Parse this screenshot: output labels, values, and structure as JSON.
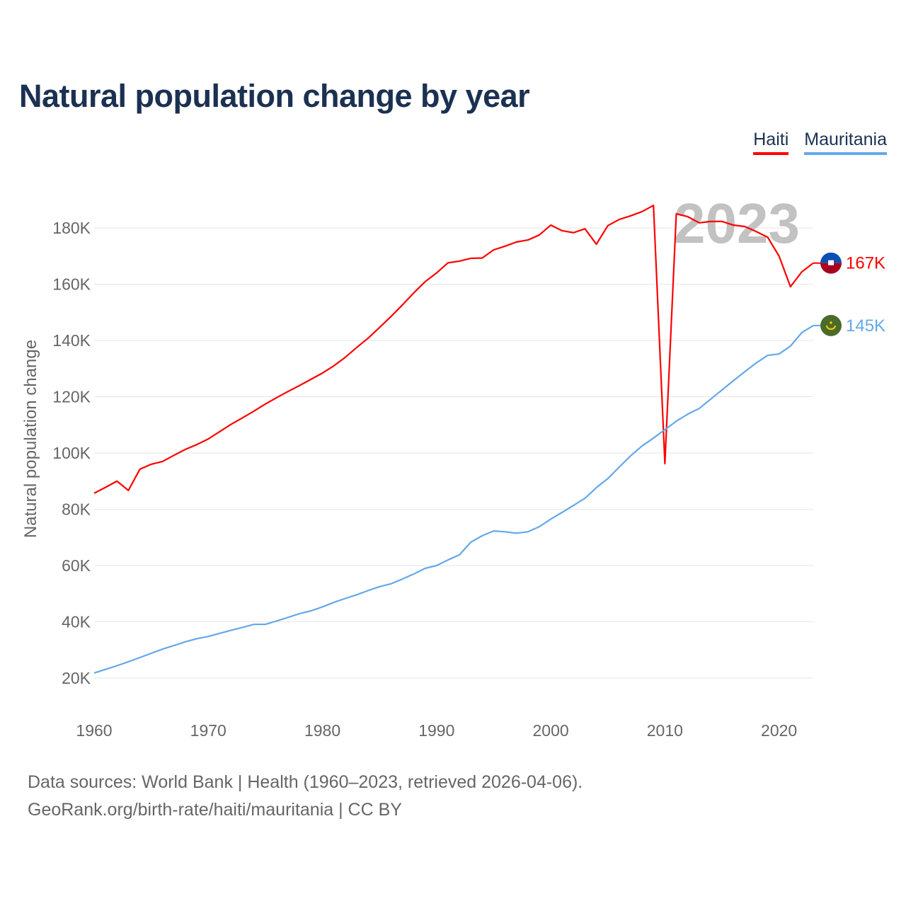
{
  "chart_data": {
    "type": "line",
    "title": "Natural population change by year",
    "xlabel": "",
    "ylabel": "Natural population change",
    "xlim": [
      1960,
      2023
    ],
    "ylim": [
      10000,
      190000
    ],
    "x_ticks": [
      1960,
      1970,
      1980,
      1990,
      2000,
      2010,
      2020
    ],
    "y_ticks": [
      20000,
      40000,
      60000,
      80000,
      100000,
      120000,
      140000,
      160000,
      180000
    ],
    "y_tick_labels": [
      "20K",
      "40K",
      "60K",
      "80K",
      "100K",
      "120K",
      "140K",
      "160K",
      "180K"
    ],
    "grid": true,
    "legend_position": "top-right",
    "year_watermark": "2023",
    "x": [
      1960,
      1961,
      1962,
      1963,
      1964,
      1965,
      1966,
      1967,
      1968,
      1969,
      1970,
      1971,
      1972,
      1973,
      1974,
      1975,
      1976,
      1977,
      1978,
      1979,
      1980,
      1981,
      1982,
      1983,
      1984,
      1985,
      1986,
      1987,
      1988,
      1989,
      1990,
      1991,
      1992,
      1993,
      1994,
      1995,
      1996,
      1997,
      1998,
      1999,
      2000,
      2001,
      2002,
      2003,
      2004,
      2005,
      2006,
      2007,
      2008,
      2009,
      2010,
      2011,
      2012,
      2013,
      2014,
      2015,
      2016,
      2017,
      2018,
      2019,
      2020,
      2021,
      2022,
      2023
    ],
    "series": [
      {
        "name": "Haiti",
        "color": "#ff0000",
        "end_label": "167K",
        "flag": "haiti-flag",
        "values": [
          85700,
          87800,
          90000,
          86700,
          94200,
          96000,
          97000,
          99200,
          101300,
          103000,
          105000,
          107600,
          110200,
          112500,
          114900,
          117400,
          119700,
          121900,
          124000,
          126200,
          128400,
          131000,
          134000,
          137500,
          140800,
          144600,
          148500,
          152600,
          156900,
          160900,
          164000,
          167600,
          168200,
          169200,
          169300,
          172200,
          173500,
          175000,
          175700,
          177500,
          181000,
          179000,
          178300,
          179700,
          174200,
          180800,
          183000,
          184300,
          185800,
          188000,
          96200,
          185000,
          184000,
          181800,
          182300,
          182300,
          181000,
          180500,
          178700,
          176700,
          170000,
          159100,
          164400,
          167500
        ]
      },
      {
        "name": "Mauritania",
        "color": "#64a8ea",
        "end_label": "145K",
        "flag": "mauritania-flag",
        "values": [
          21800,
          23100,
          24400,
          25800,
          27300,
          28800,
          30300,
          31600,
          32900,
          34000,
          34800,
          35900,
          37000,
          38000,
          39100,
          39100,
          40300,
          41600,
          42900,
          43900,
          45300,
          46900,
          48300,
          49600,
          51100,
          52500,
          53500,
          55200,
          57000,
          59000,
          60000,
          62000,
          63800,
          68300,
          70600,
          72300,
          72000,
          71500,
          72000,
          73800,
          76500,
          78900,
          81400,
          83900,
          87700,
          90900,
          95000,
          99000,
          102500,
          105300,
          108300,
          111300,
          113800,
          115800,
          119100,
          122400,
          125700,
          128900,
          132000,
          134700,
          135200,
          138000,
          142800,
          145300
        ]
      }
    ]
  },
  "source": {
    "line1": "Data sources: World Bank | Health (1960–2023, retrieved 2026-04-06).",
    "line2": "GeoRank.org/birth-rate/haiti/mauritania | CC BY"
  }
}
